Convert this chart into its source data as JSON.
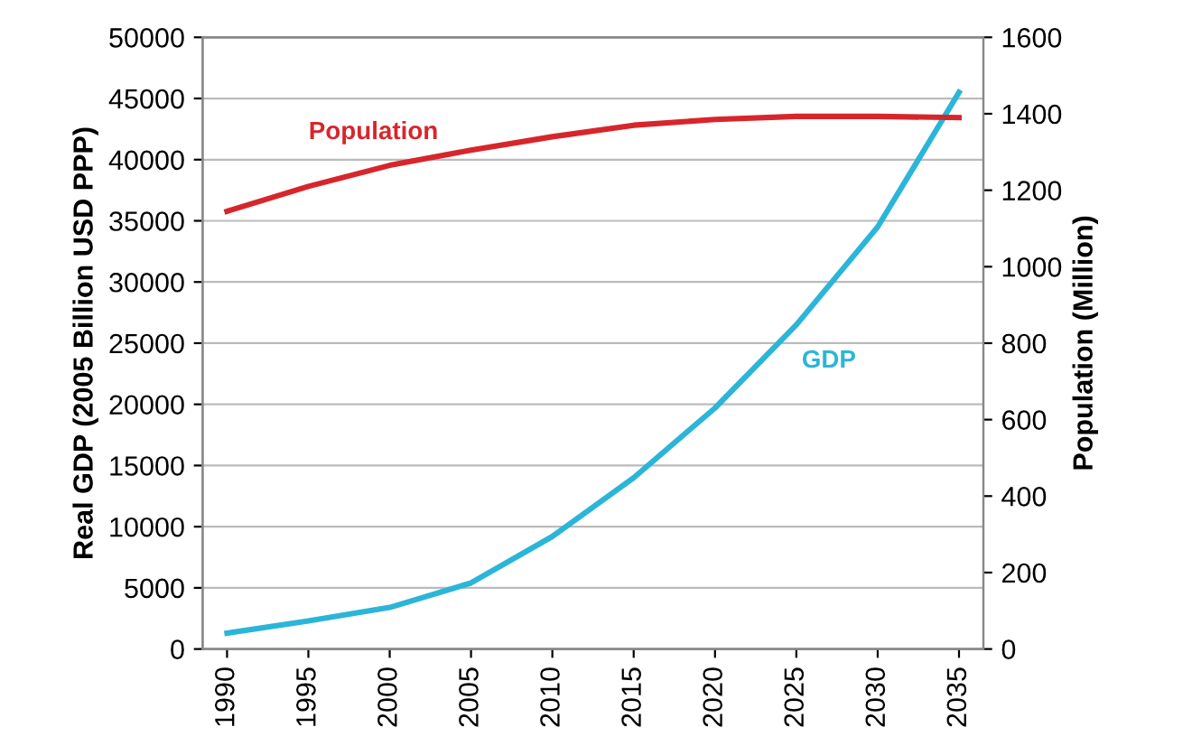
{
  "chart_data": {
    "type": "line",
    "ylabel": "Real GDP (2005 Billion USD PPP)",
    "y2label": "Population (Million)",
    "categories": [
      "1990",
      "1995",
      "2000",
      "2005",
      "2010",
      "2015",
      "2020",
      "2025",
      "2030",
      "2035"
    ],
    "series": [
      {
        "name": "GDP",
        "color": "#2bb5d8",
        "values": [
          1300,
          2300,
          3400,
          5400,
          9200,
          14000,
          19700,
          26500,
          34500,
          45500
        ]
      },
      {
        "name": "Population",
        "color": "#d7262b",
        "axis": "y2",
        "values": [
          1145,
          1210,
          1265,
          1305,
          1340,
          1370,
          1385,
          1393,
          1393,
          1390
        ]
      }
    ],
    "ylim": [
      0,
      50000
    ],
    "yticks": [
      0,
      5000,
      10000,
      15000,
      20000,
      25000,
      30000,
      35000,
      40000,
      45000,
      50000
    ],
    "y2lim": [
      0,
      1600
    ],
    "y2ticks": [
      0,
      200,
      400,
      600,
      800,
      1000,
      1200,
      1400,
      1600
    ],
    "grid": "y",
    "legend": false,
    "marker": "none",
    "line_style": "solid"
  }
}
